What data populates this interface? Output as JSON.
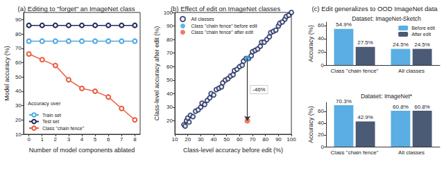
{
  "chart_data": [
    {
      "type": "line",
      "title": "(a) Editing to \"forget\" an ImageNet class",
      "x_label": "Number of model components ablated",
      "y_label": "Model accuracy (%)",
      "x": [
        0,
        1,
        2,
        3,
        4,
        5,
        6,
        7,
        8
      ],
      "xlim": [
        -0.4,
        8.4
      ],
      "xticks": [
        0,
        1,
        2,
        3,
        4,
        5,
        6,
        7,
        8
      ],
      "ylim": [
        10,
        95
      ],
      "yticks": [
        10,
        20,
        30,
        40,
        50,
        60,
        70,
        80,
        90
      ],
      "legend": "lower left",
      "legend_title": "Accuracy over",
      "series": [
        {
          "name": "Train set",
          "color": "#4fa7e0",
          "marker": "hollow circle",
          "values": [
            75,
            75,
            75,
            75,
            75,
            75,
            75,
            75,
            75
          ]
        },
        {
          "name": "Test set",
          "color": "#1e2a5e",
          "marker": "hollow circle",
          "values": [
            86,
            86,
            86,
            86,
            86,
            86,
            86,
            86,
            86
          ]
        },
        {
          "name": "Class \"chain fence\"",
          "color": "#ea5a3d",
          "marker": "hollow circle",
          "values": [
            66,
            62,
            58,
            48,
            42,
            40,
            36,
            28,
            20
          ]
        }
      ]
    },
    {
      "type": "scatter",
      "title": "(b) Effect of edit on ImageNet classes",
      "x_label": "Class-level accuracy before edit (%)",
      "y_label": "Class-level accuracy after edit (%)",
      "xlim": [
        10,
        100
      ],
      "xticks": [
        10,
        20,
        30,
        40,
        50,
        60,
        70,
        80,
        90,
        100
      ],
      "ylim": [
        10,
        100
      ],
      "yticks": [
        20,
        30,
        40,
        50,
        60,
        70,
        80,
        90,
        100
      ],
      "legend": "upper left",
      "series": [
        {
          "name": "All classes",
          "color": "#1e2a5e",
          "marker": "hollow circle",
          "x": [
            17,
            18,
            19,
            20,
            21,
            22,
            24,
            26,
            28,
            30,
            31,
            33,
            35,
            37,
            38,
            40,
            42,
            44,
            46,
            47,
            49,
            51,
            53,
            55,
            56,
            58,
            60,
            62,
            63,
            65,
            67,
            69,
            70,
            72,
            74,
            76,
            77,
            79,
            81,
            83,
            84,
            86,
            88,
            90,
            91,
            93,
            95,
            96,
            98,
            100
          ],
          "values": [
            17,
            16,
            20,
            22,
            19,
            24,
            23,
            27,
            28,
            30,
            33,
            32,
            35,
            37,
            40,
            39,
            43,
            44,
            45,
            48,
            50,
            51,
            53,
            54,
            57,
            58,
            60,
            61,
            64,
            66,
            66,
            68,
            71,
            72,
            73,
            75,
            78,
            78,
            80,
            82,
            85,
            86,
            87,
            90,
            92,
            93,
            95,
            97,
            98,
            100
          ]
        },
        {
          "name": "Class \"chain fence\" before edit",
          "color": "#3aa0dc",
          "marker": "circle",
          "x": [
            66
          ],
          "values": [
            66
          ]
        },
        {
          "name": "Class \"chain fence\" after edit",
          "color": "#ea5a3d",
          "marker": "circle",
          "x": [
            66
          ],
          "values": [
            20
          ]
        }
      ],
      "annotations": [
        {
          "text": "-46%",
          "x": 66,
          "from": 66,
          "to": 20
        }
      ]
    },
    {
      "type": "bar",
      "title": "(c) Edit generalizes to OOD ImageNet data",
      "subtitle": "Dataset: ImageNet-Sketch",
      "y_label": "Accuracy (%)",
      "categories": [
        "Class \"chain fence\"",
        "All classes"
      ],
      "ylim": [
        0,
        65
      ],
      "yticks": [
        0,
        20,
        40,
        60
      ],
      "data_labels": true,
      "legend": "upper right",
      "series": [
        {
          "name": "Before edit",
          "color": "#5aaee3",
          "values": [
            54.9,
            24.5
          ],
          "value_labels": [
            "54.9%",
            "24.5%"
          ]
        },
        {
          "name": "After edit",
          "color": "#4b5a75",
          "values": [
            27.5,
            24.5
          ],
          "value_labels": [
            "27.5%",
            "24.5%"
          ]
        }
      ]
    },
    {
      "type": "bar",
      "subtitle": "Dataset: ImageNet*",
      "y_label": "Accuracy (%)",
      "categories": [
        "Class \"chain fence\"",
        "All classes"
      ],
      "ylim": [
        0,
        75
      ],
      "yticks": [
        0,
        20,
        40,
        60
      ],
      "data_labels": true,
      "series": [
        {
          "name": "Before edit",
          "color": "#5aaee3",
          "values": [
            70.3,
            60.8
          ],
          "value_labels": [
            "70.3%",
            "60.8%"
          ]
        },
        {
          "name": "After edit",
          "color": "#4b5a75",
          "values": [
            42.9,
            60.8
          ],
          "value_labels": [
            "42.9%",
            "60.8%"
          ]
        }
      ]
    }
  ]
}
